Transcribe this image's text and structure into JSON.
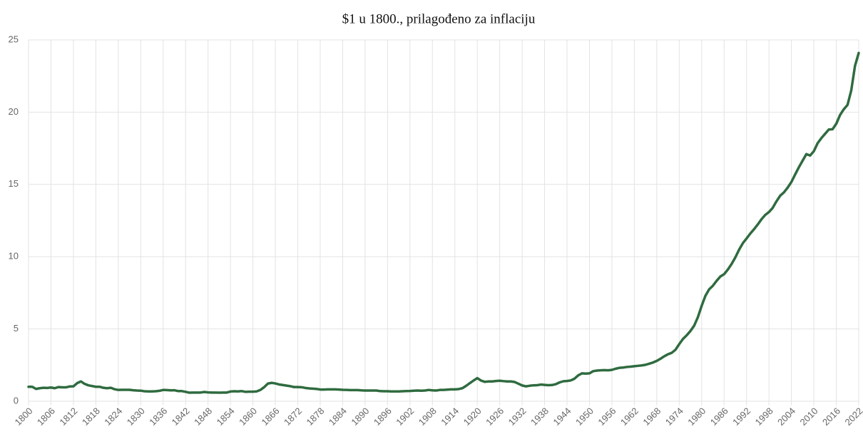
{
  "chart_data": {
    "type": "line",
    "title": "$1 u 1800., prilagođeno za inflaciju",
    "x": [
      1800,
      1801,
      1802,
      1803,
      1804,
      1805,
      1806,
      1807,
      1808,
      1809,
      1810,
      1811,
      1812,
      1813,
      1814,
      1815,
      1816,
      1817,
      1818,
      1819,
      1820,
      1821,
      1822,
      1823,
      1824,
      1825,
      1826,
      1827,
      1828,
      1829,
      1830,
      1831,
      1832,
      1833,
      1834,
      1835,
      1836,
      1837,
      1838,
      1839,
      1840,
      1841,
      1842,
      1843,
      1844,
      1845,
      1846,
      1847,
      1848,
      1849,
      1850,
      1851,
      1852,
      1853,
      1854,
      1855,
      1856,
      1857,
      1858,
      1859,
      1860,
      1861,
      1862,
      1863,
      1864,
      1865,
      1866,
      1867,
      1868,
      1869,
      1870,
      1871,
      1872,
      1873,
      1874,
      1875,
      1876,
      1877,
      1878,
      1879,
      1880,
      1881,
      1882,
      1883,
      1884,
      1885,
      1886,
      1887,
      1888,
      1889,
      1890,
      1891,
      1892,
      1893,
      1894,
      1895,
      1896,
      1897,
      1898,
      1899,
      1900,
      1901,
      1902,
      1903,
      1904,
      1905,
      1906,
      1907,
      1908,
      1909,
      1910,
      1911,
      1912,
      1913,
      1914,
      1915,
      1916,
      1917,
      1918,
      1919,
      1920,
      1921,
      1922,
      1923,
      1924,
      1925,
      1926,
      1927,
      1928,
      1929,
      1930,
      1931,
      1932,
      1933,
      1934,
      1935,
      1936,
      1937,
      1938,
      1939,
      1940,
      1941,
      1942,
      1943,
      1944,
      1945,
      1946,
      1947,
      1948,
      1949,
      1950,
      1951,
      1952,
      1953,
      1954,
      1955,
      1956,
      1957,
      1958,
      1959,
      1960,
      1961,
      1962,
      1963,
      1964,
      1965,
      1966,
      1967,
      1968,
      1969,
      1970,
      1971,
      1972,
      1973,
      1974,
      1975,
      1976,
      1977,
      1978,
      1979,
      1980,
      1981,
      1982,
      1983,
      1984,
      1985,
      1986,
      1987,
      1988,
      1989,
      1990,
      1991,
      1992,
      1993,
      1994,
      1995,
      1996,
      1997,
      1998,
      1999,
      2000,
      2001,
      2002,
      2003,
      2004,
      2005,
      2006,
      2007,
      2008,
      2009,
      2010,
      2011,
      2012,
      2013,
      2014,
      2015,
      2016,
      2017,
      2018,
      2019,
      2020,
      2021,
      2022
    ],
    "series": [
      {
        "color": "#2f6b3f",
        "values": [
          1.0,
          1.0,
          0.85,
          0.9,
          0.93,
          0.92,
          0.95,
          0.9,
          0.98,
          0.96,
          0.96,
          1.02,
          1.03,
          1.25,
          1.37,
          1.2,
          1.1,
          1.05,
          1.0,
          1.0,
          0.93,
          0.9,
          0.93,
          0.83,
          0.78,
          0.79,
          0.79,
          0.79,
          0.76,
          0.74,
          0.73,
          0.69,
          0.68,
          0.68,
          0.69,
          0.72,
          0.78,
          0.77,
          0.75,
          0.76,
          0.7,
          0.7,
          0.65,
          0.59,
          0.6,
          0.6,
          0.6,
          0.64,
          0.61,
          0.6,
          0.6,
          0.59,
          0.6,
          0.6,
          0.67,
          0.69,
          0.68,
          0.7,
          0.65,
          0.66,
          0.66,
          0.68,
          0.78,
          0.97,
          1.22,
          1.27,
          1.23,
          1.16,
          1.12,
          1.08,
          1.04,
          0.98,
          0.98,
          0.97,
          0.92,
          0.89,
          0.87,
          0.85,
          0.81,
          0.81,
          0.82,
          0.82,
          0.82,
          0.81,
          0.79,
          0.78,
          0.77,
          0.77,
          0.77,
          0.75,
          0.74,
          0.74,
          0.74,
          0.74,
          0.7,
          0.69,
          0.69,
          0.68,
          0.68,
          0.68,
          0.69,
          0.7,
          0.71,
          0.73,
          0.74,
          0.73,
          0.74,
          0.78,
          0.75,
          0.74,
          0.78,
          0.78,
          0.8,
          0.82,
          0.82,
          0.84,
          0.9,
          1.06,
          1.25,
          1.43,
          1.6,
          1.43,
          1.34,
          1.37,
          1.37,
          1.4,
          1.42,
          1.39,
          1.37,
          1.37,
          1.33,
          1.21,
          1.09,
          1.03,
          1.07,
          1.1,
          1.11,
          1.15,
          1.13,
          1.11,
          1.12,
          1.18,
          1.3,
          1.38,
          1.4,
          1.44,
          1.56,
          1.79,
          1.93,
          1.91,
          1.93,
          2.08,
          2.12,
          2.14,
          2.15,
          2.14,
          2.17,
          2.25,
          2.31,
          2.33,
          2.37,
          2.39,
          2.42,
          2.45,
          2.48,
          2.52,
          2.6,
          2.68,
          2.79,
          2.94,
          3.11,
          3.25,
          3.35,
          3.56,
          3.95,
          4.31,
          4.56,
          4.86,
          5.23,
          5.82,
          6.6,
          7.29,
          7.74,
          7.99,
          8.33,
          8.63,
          8.79,
          9.11,
          9.49,
          9.95,
          10.48,
          10.93,
          11.26,
          11.6,
          11.9,
          12.23,
          12.59,
          12.89,
          13.09,
          13.38,
          13.83,
          14.22,
          14.45,
          14.78,
          15.17,
          15.69,
          16.19,
          16.65,
          17.1,
          17.0,
          17.3,
          17.85,
          18.2,
          18.5,
          18.8,
          18.82,
          19.2,
          19.8,
          20.2,
          20.5,
          21.5,
          23.2,
          24.1
        ]
      }
    ],
    "xlim": [
      1800,
      2022
    ],
    "xticks": [
      1800,
      1806,
      1812,
      1818,
      1824,
      1830,
      1836,
      1842,
      1848,
      1854,
      1860,
      1866,
      1872,
      1878,
      1884,
      1890,
      1896,
      1902,
      1908,
      1914,
      1920,
      1926,
      1932,
      1938,
      1944,
      1950,
      1956,
      1962,
      1968,
      1974,
      1980,
      1986,
      1992,
      1998,
      2004,
      2010,
      2016,
      2022
    ],
    "ylim": [
      0,
      25
    ],
    "yticks": [
      0,
      5,
      10,
      15,
      20,
      25
    ],
    "grid": true
  }
}
